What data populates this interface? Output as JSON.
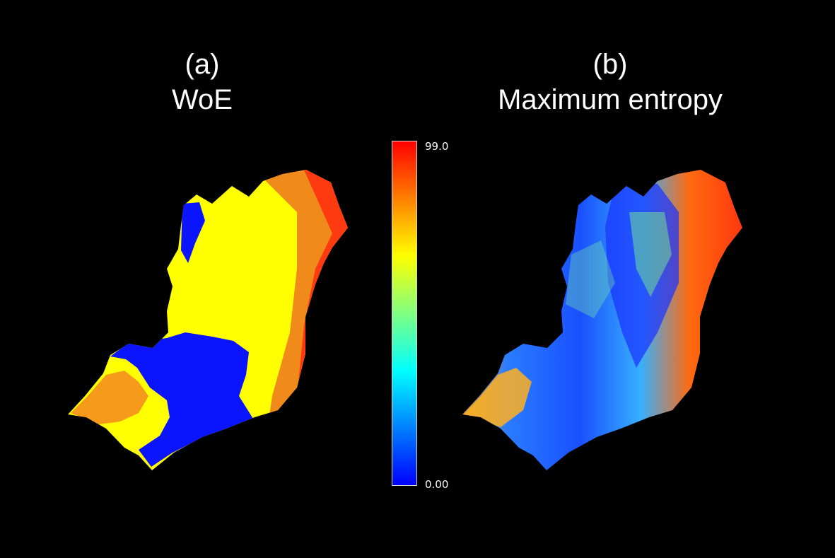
{
  "panels": [
    {
      "letter": "(a)",
      "name": "WoE"
    },
    {
      "letter": "(b)",
      "name": "Maximum entropy"
    }
  ],
  "legend": {
    "max_label": "99.0",
    "min_label": "0.00",
    "max_value": 99.0,
    "min_value": 0.0,
    "colormap": [
      "#0000ff",
      "#0080ff",
      "#00ffff",
      "#80ff80",
      "#ffff00",
      "#ff8000",
      "#ff0000"
    ]
  },
  "colors": {
    "background": "#000000",
    "low": "#0a14ff",
    "mid": "#ffff00",
    "orange": "#f59a1a",
    "high": "#ff2a10"
  }
}
